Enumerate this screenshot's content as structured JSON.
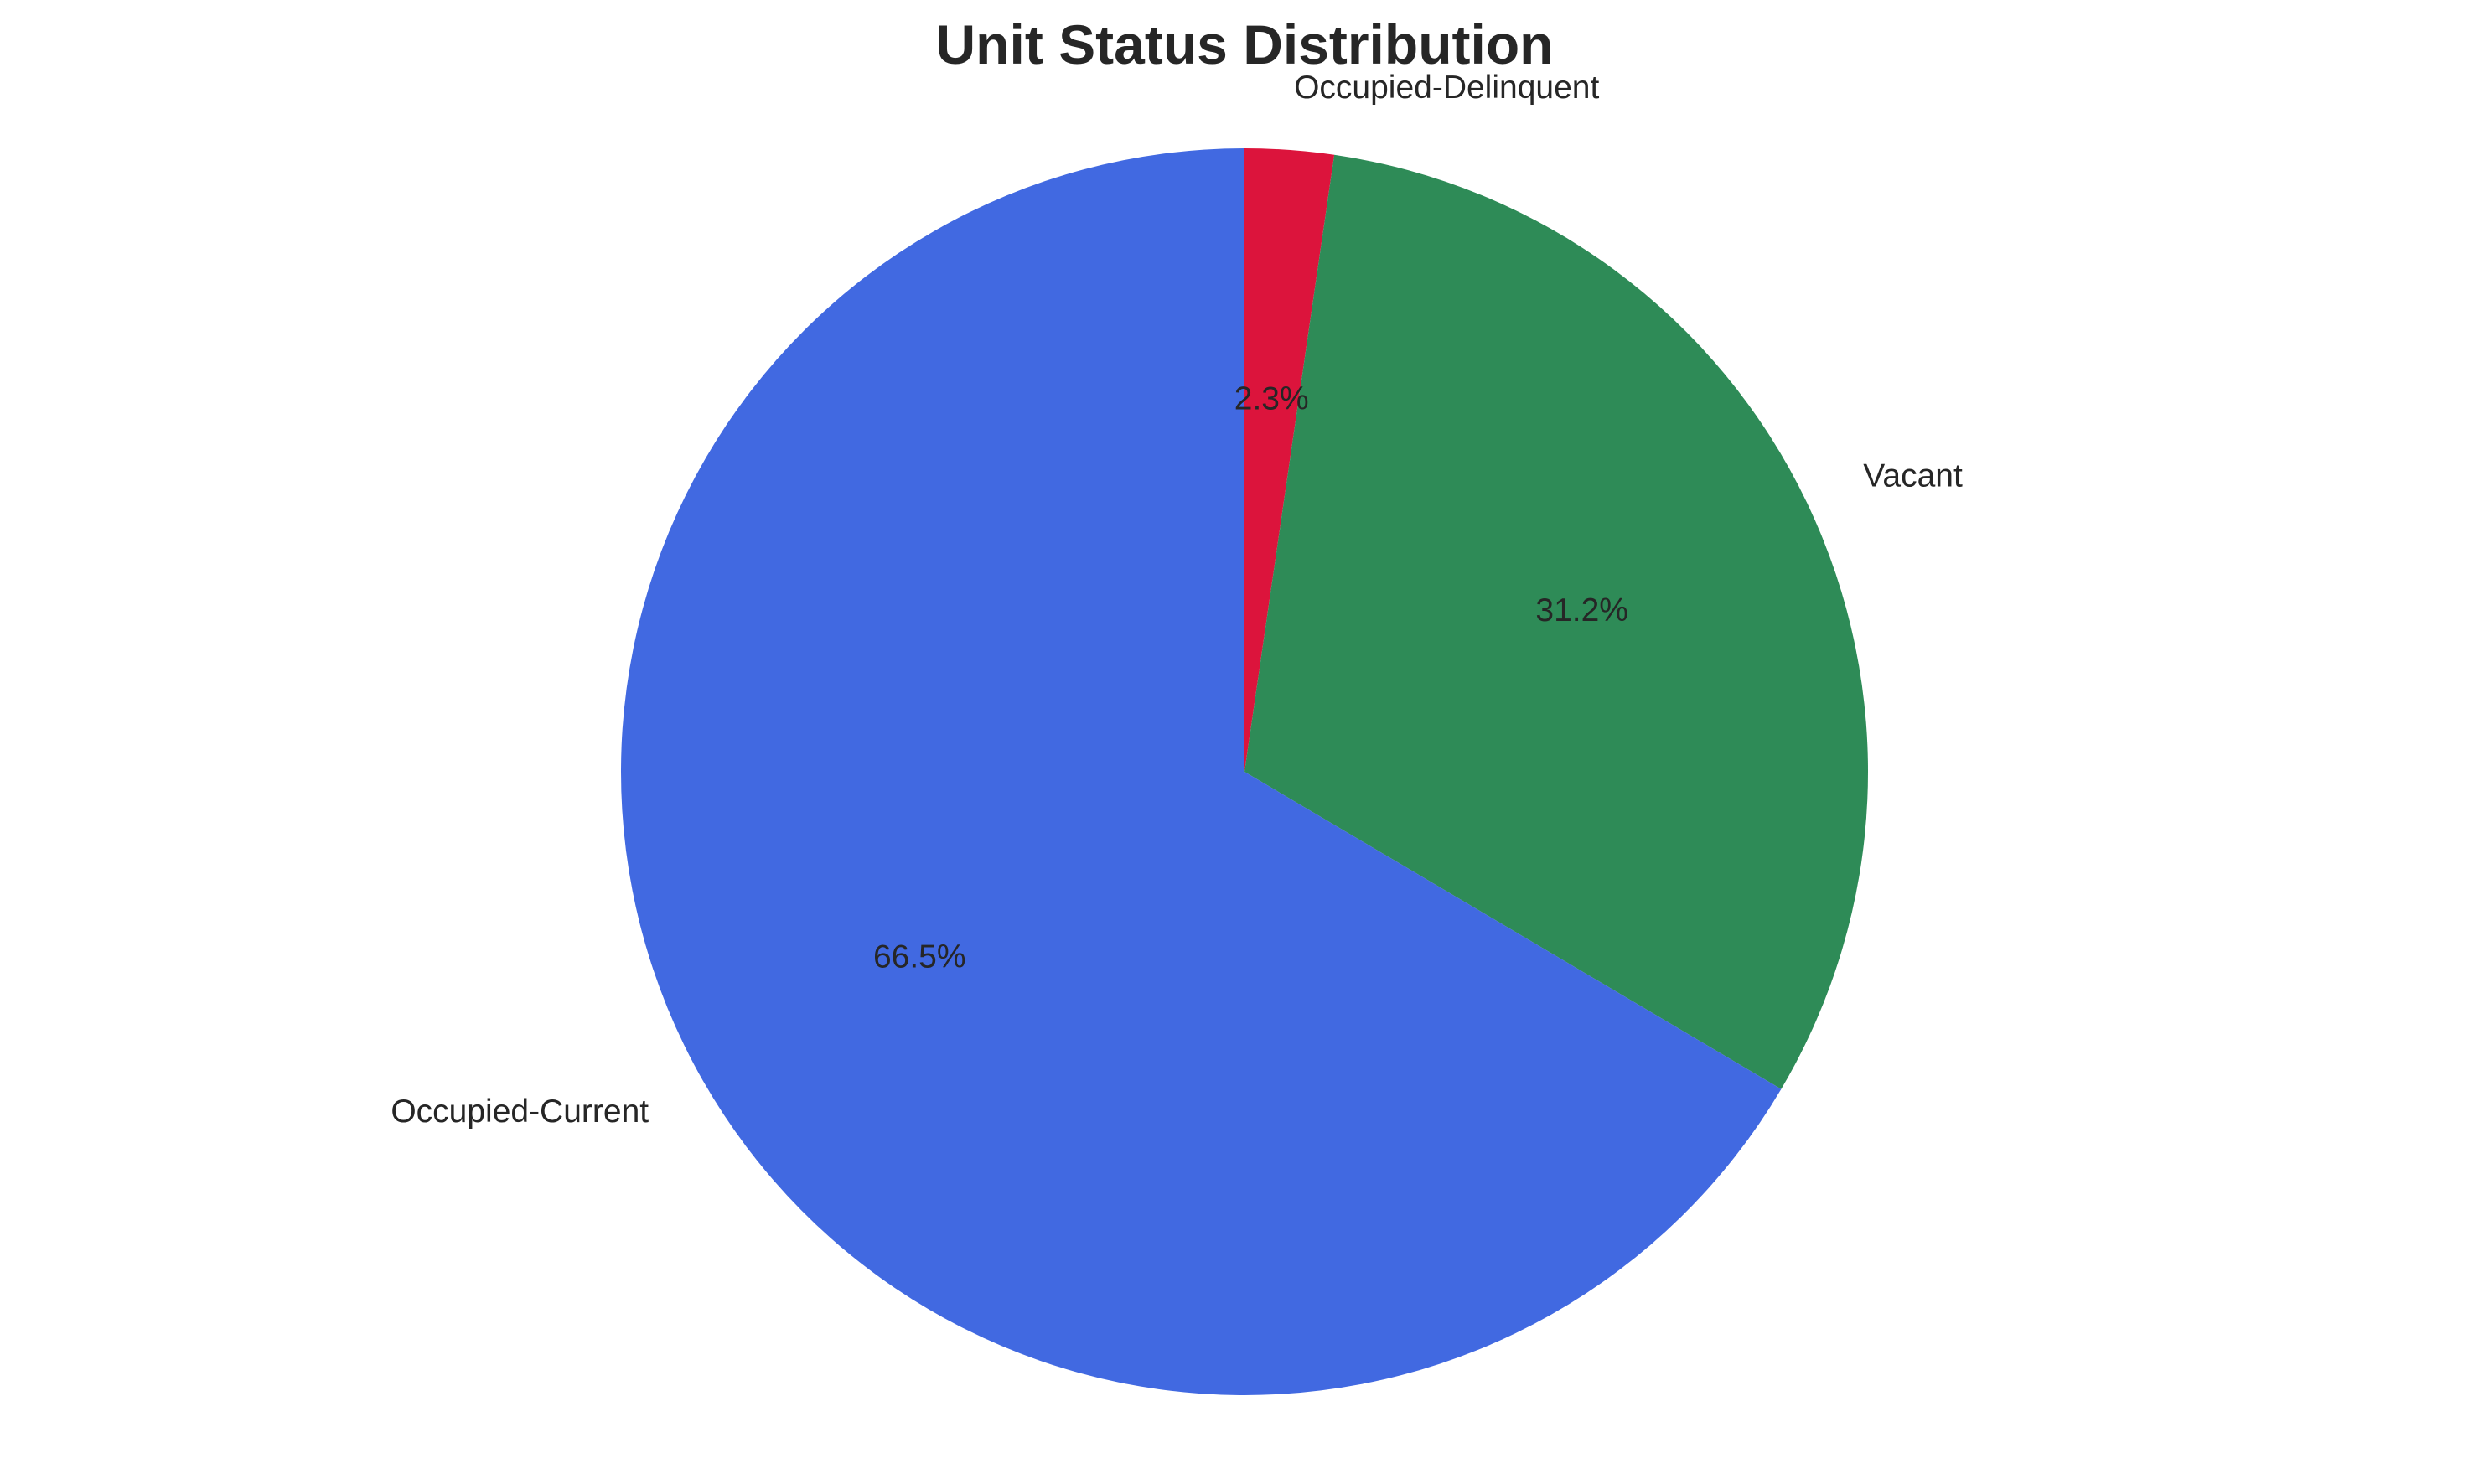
{
  "chart_data": {
    "type": "pie",
    "title": "Unit Status Distribution",
    "start_angle_deg": 90,
    "direction": "clockwise",
    "slices": [
      {
        "label": "Occupied-Delinquent",
        "value": 2.3,
        "pct_label": "2.3%",
        "color": "#dc143c"
      },
      {
        "label": "Vacant",
        "value": 31.2,
        "pct_label": "31.2%",
        "color": "#2e8b57"
      },
      {
        "label": "Occupied-Current",
        "value": 66.5,
        "pct_label": "66.5%",
        "color": "#4169e1"
      }
    ],
    "legend": "none"
  }
}
